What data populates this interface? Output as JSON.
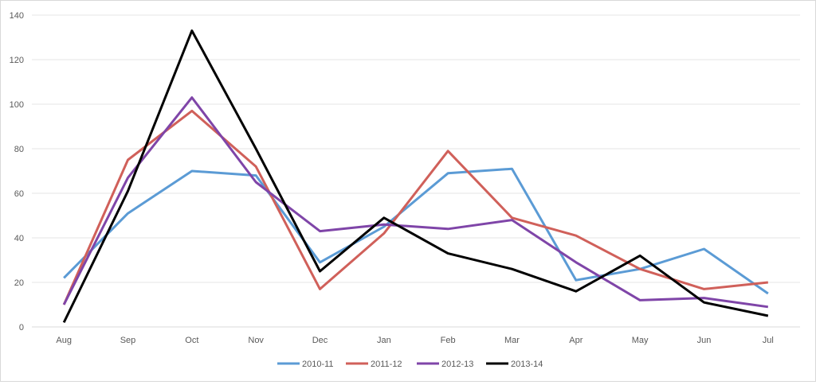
{
  "chart_data": {
    "type": "line",
    "title": "",
    "xlabel": "",
    "ylabel": "",
    "ylim": [
      0,
      140
    ],
    "yticks": [
      0,
      20,
      40,
      60,
      80,
      100,
      120,
      140
    ],
    "grid": true,
    "legend": "bottom",
    "categories": [
      "Aug",
      "Sep",
      "Oct",
      "Nov",
      "Dec",
      "Jan",
      "Feb",
      "Mar",
      "Apr",
      "May",
      "Jun",
      "Jul"
    ],
    "series": [
      {
        "name": "2010-11",
        "color": "#5b9bd5",
        "values": [
          22,
          51,
          70,
          68,
          29,
          45,
          69,
          71,
          21,
          26,
          35,
          15
        ]
      },
      {
        "name": "2011-12",
        "color": "#d0605a",
        "values": [
          10,
          75,
          97,
          72,
          17,
          42,
          79,
          49,
          41,
          26,
          17,
          20
        ]
      },
      {
        "name": "2012-13",
        "color": "#7f45a8",
        "values": [
          10,
          67,
          103,
          65,
          43,
          46,
          44,
          48,
          29,
          12,
          13,
          9
        ]
      },
      {
        "name": "2013-14",
        "color": "#000000",
        "values": [
          2,
          61,
          133,
          80,
          25,
          49,
          33,
          26,
          16,
          32,
          11,
          5
        ]
      }
    ]
  }
}
